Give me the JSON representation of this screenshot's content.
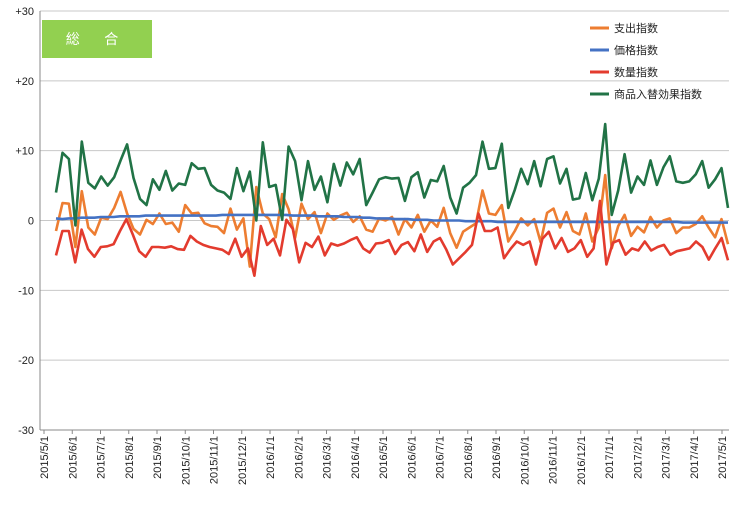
{
  "chart_data": {
    "type": "line",
    "title": "",
    "badge": "総 合",
    "badge_color": "#92d050",
    "xlabel": "",
    "ylabel": "",
    "ylim": [
      -30,
      30
    ],
    "y_ticks": [
      "+30",
      "+20",
      "+10",
      "0",
      "-10",
      "-20",
      "-30"
    ],
    "y_tick_values": [
      30,
      20,
      10,
      0,
      -10,
      -20,
      -30
    ],
    "x_ticks": [
      "2015/5/1",
      "2015/6/1",
      "2015/7/1",
      "2015/8/1",
      "2015/9/1",
      "2015/10/1",
      "2015/11/1",
      "2015/12/1",
      "2016/1/1",
      "2016/2/1",
      "2016/3/1",
      "2016/4/1",
      "2016/5/1",
      "2016/6/1",
      "2016/7/1",
      "2016/8/1",
      "2016/9/1",
      "2016/10/1",
      "2016/11/1",
      "2016/12/1",
      "2017/1/1",
      "2017/2/1",
      "2017/3/1",
      "2017/4/1",
      "2017/5/1"
    ],
    "grid": "horizontal",
    "legend_position": "top-right",
    "series": [
      {
        "name": "支出指数",
        "color": "#ed7d31",
        "values": [
          -1.5,
          2.5,
          2.4,
          -3.8,
          4.2,
          -1.0,
          -2.0,
          0.4,
          0.2,
          1.8,
          4.1,
          1.0,
          -1.2,
          -2.0,
          0.1,
          -0.5,
          1.0,
          -0.5,
          -0.3,
          -1.6,
          2.2,
          1.0,
          1.1,
          -0.4,
          -0.8,
          -0.9,
          -1.8,
          1.7,
          -1.3,
          0.3,
          -6.6,
          4.8,
          1.0,
          0.2,
          -2.4,
          3.8,
          1.6,
          -2.5,
          2.4,
          0.2,
          1.2,
          -1.8,
          1.0,
          0.1,
          0.7,
          1.1,
          -0.2,
          0.6,
          -1.3,
          -1.6,
          0.3,
          0.0,
          0.5,
          -2.0,
          0.2,
          -1.0,
          0.8,
          -1.6,
          0.0,
          -0.9,
          1.8,
          -1.8,
          -3.9,
          -1.6,
          -1.0,
          -0.4,
          4.3,
          1.0,
          0.8,
          2.2,
          -3.0,
          -1.5,
          0.3,
          -0.7,
          0.2,
          -3.1,
          1.1,
          1.7,
          -1.0,
          1.2,
          -1.5,
          -2.0,
          1.0,
          -3.0,
          -1.0,
          6.5,
          -4.0,
          -0.8,
          0.8,
          -2.2,
          -0.9,
          -1.7,
          0.5,
          -1.0,
          0.0,
          0.3,
          -1.8,
          -1.0,
          -1.0,
          -0.5,
          0.6,
          -1.0,
          -2.4,
          0.2,
          -3.4
        ]
      },
      {
        "name": "価格指数",
        "color": "#4472c4",
        "values": [
          0.3,
          0.2,
          0.3,
          0.3,
          0.4,
          0.4,
          0.4,
          0.5,
          0.5,
          0.5,
          0.6,
          0.6,
          0.6,
          0.6,
          0.7,
          0.7,
          0.7,
          0.7,
          0.7,
          0.7,
          0.7,
          0.7,
          0.7,
          0.7,
          0.7,
          0.7,
          0.8,
          0.8,
          0.8,
          0.8,
          0.8,
          0.8,
          0.8,
          0.8,
          0.8,
          0.8,
          0.8,
          0.7,
          0.7,
          0.7,
          0.7,
          0.6,
          0.6,
          0.6,
          0.6,
          0.5,
          0.5,
          0.5,
          0.4,
          0.4,
          0.3,
          0.3,
          0.3,
          0.2,
          0.2,
          0.2,
          0.1,
          0.1,
          0.1,
          0.0,
          0.0,
          0.0,
          0.0,
          0.0,
          -0.1,
          -0.1,
          -0.1,
          -0.1,
          -0.1,
          -0.2,
          -0.2,
          -0.2,
          -0.2,
          -0.2,
          -0.2,
          -0.2,
          -0.2,
          -0.2,
          -0.2,
          -0.2,
          -0.2,
          -0.2,
          -0.2,
          -0.2,
          -0.2,
          -0.2,
          -0.2,
          -0.2,
          -0.2,
          -0.2,
          -0.2,
          -0.2,
          -0.2,
          -0.2,
          -0.2,
          -0.2,
          -0.2,
          -0.2,
          -0.3,
          -0.3,
          -0.3,
          -0.3,
          -0.3,
          -0.3,
          -0.3,
          -0.3
        ]
      },
      {
        "name": "数量指数",
        "color": "#e33b2e",
        "values": [
          -5.0,
          -1.5,
          -1.5,
          -6.0,
          -1.3,
          -4.1,
          -5.2,
          -3.8,
          -3.7,
          -3.4,
          -1.5,
          0.2,
          -2.0,
          -4.4,
          -5.2,
          -3.8,
          -3.8,
          -3.9,
          -3.7,
          -4.1,
          -4.2,
          -2.2,
          -3.0,
          -3.5,
          -3.8,
          -4.0,
          -4.2,
          -4.8,
          -2.6,
          -5.2,
          -4.0,
          -7.9,
          -0.8,
          -3.5,
          -2.6,
          -5.0,
          0.1,
          -1.2,
          -6.0,
          -3.2,
          -3.8,
          -2.3,
          -5.0,
          -3.3,
          -3.6,
          -3.3,
          -2.8,
          -2.4,
          -4.0,
          -4.6,
          -3.3,
          -3.2,
          -2.8,
          -4.8,
          -3.5,
          -3.1,
          -4.4,
          -2.0,
          -4.5,
          -3.0,
          -2.5,
          -4.2,
          -6.3,
          -5.4,
          -4.5,
          -3.5,
          1.0,
          -1.5,
          -1.5,
          -1.0,
          -5.4,
          -4.1,
          -3.0,
          -3.5,
          -3.0,
          -6.3,
          -2.6,
          -1.6,
          -4.0,
          -2.5,
          -4.5,
          -4.0,
          -2.8,
          -5.2,
          -4.0,
          2.8,
          -6.3,
          -3.2,
          -2.8,
          -4.9,
          -4.0,
          -4.3,
          -3.0,
          -4.3,
          -3.8,
          -3.5,
          -4.9,
          -4.4,
          -4.2,
          -4.0,
          -3.0,
          -3.8,
          -5.6,
          -4.0,
          -2.5,
          -5.7
        ]
      },
      {
        "name": "商品入替効果指数",
        "color": "#217346",
        "values": [
          4.0,
          9.7,
          8.8,
          -0.7,
          11.3,
          5.4,
          4.6,
          6.3,
          5.0,
          6.2,
          8.6,
          10.9,
          6.1,
          3.1,
          2.2,
          5.9,
          4.4,
          7.1,
          4.3,
          5.3,
          5.1,
          8.2,
          7.4,
          7.5,
          5.1,
          4.3,
          4.0,
          3.1,
          7.5,
          4.2,
          7.0,
          0.0,
          11.2,
          4.8,
          5.1,
          0.1,
          10.6,
          8.5,
          2.9,
          8.5,
          4.4,
          6.3,
          2.6,
          8.1,
          5.0,
          8.3,
          6.6,
          8.8,
          2.2,
          4.0,
          5.9,
          6.2,
          6.0,
          6.1,
          2.8,
          6.2,
          6.9,
          3.3,
          5.8,
          5.6,
          7.8,
          3.3,
          1.0,
          4.7,
          5.4,
          6.5,
          11.3,
          7.4,
          7.5,
          11.0,
          1.8,
          4.4,
          7.4,
          5.2,
          8.5,
          4.9,
          8.8,
          9.2,
          5.3,
          7.4,
          3.0,
          3.2,
          6.8,
          2.9,
          6.0,
          13.8,
          0.8,
          4.3,
          9.5,
          4.0,
          6.3,
          5.1,
          8.6,
          5.1,
          7.6,
          9.2,
          5.6,
          5.4,
          5.6,
          6.6,
          8.5,
          4.7,
          5.9,
          7.5,
          1.8
        ]
      }
    ]
  }
}
